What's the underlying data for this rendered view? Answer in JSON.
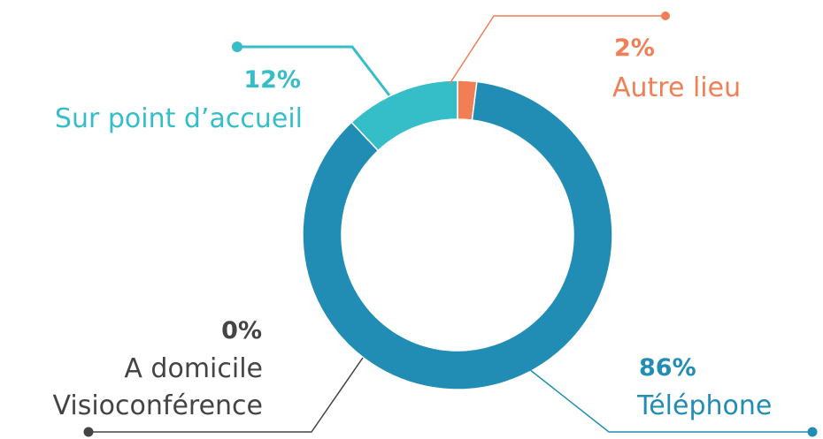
{
  "chart_data": {
    "type": "pie",
    "title": "",
    "slices": [
      {
        "id": "autre-lieu",
        "label": "Autre lieu",
        "value": 2,
        "value_label": "2%",
        "color": "#f07f56"
      },
      {
        "id": "telephone",
        "label": "Téléphone",
        "value": 86,
        "value_label": "86%",
        "color": "#228db4"
      },
      {
        "id": "a-domicile-visio",
        "label": [
          "A domicile",
          "Visioconférence"
        ],
        "value": 0,
        "value_label": "0%",
        "color": "#444444"
      },
      {
        "id": "sur-point-accueil",
        "label": "Sur point d’accueil",
        "value": 12,
        "value_label": "12%",
        "color": "#35bec8"
      }
    ]
  }
}
